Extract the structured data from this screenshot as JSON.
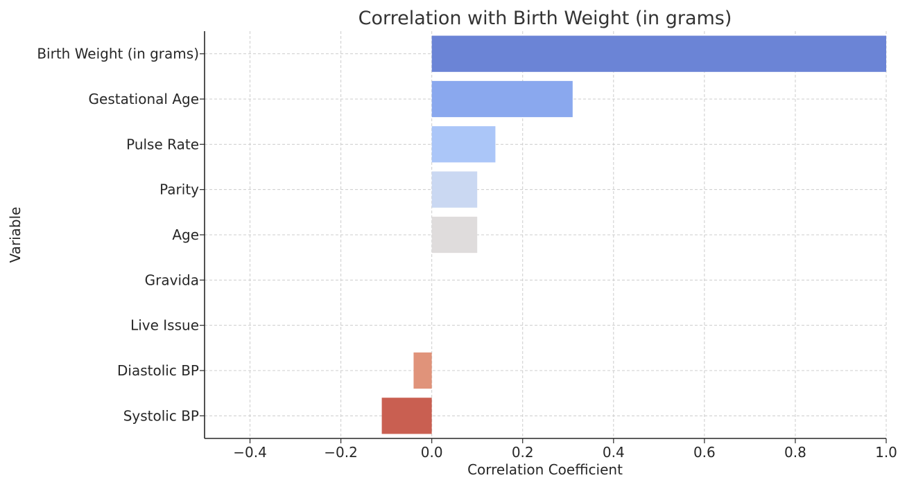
{
  "chart_data": {
    "type": "bar",
    "orientation": "horizontal",
    "title": "Correlation with Birth Weight (in grams)",
    "xlabel": "Correlation Coefficient",
    "ylabel": "Variable",
    "xlim": [
      -0.5,
      1.0
    ],
    "x_ticks": [
      -0.4,
      -0.2,
      0.0,
      0.2,
      0.4,
      0.6,
      0.8,
      1.0
    ],
    "x_tick_labels": [
      "−0.4",
      "−0.2",
      "0.0",
      "0.2",
      "0.4",
      "0.6",
      "0.8",
      "1.0"
    ],
    "grid": true,
    "categories": [
      "Birth Weight (in grams)",
      "Gestational Age",
      "Pulse Rate",
      "Parity",
      "Age",
      "Gravida",
      "Live Issue",
      "Diastolic BP",
      "Systolic BP"
    ],
    "values": [
      1.0,
      0.31,
      0.14,
      0.1,
      0.1,
      0.0,
      0.0,
      -0.04,
      -0.11
    ],
    "colors": [
      "#6b84d6",
      "#8aa8ee",
      "#abc6f8",
      "#cad8f2",
      "#dfdcdc",
      "#ece2da",
      "#f0cfb9",
      "#e0937a",
      "#c95f51"
    ]
  }
}
